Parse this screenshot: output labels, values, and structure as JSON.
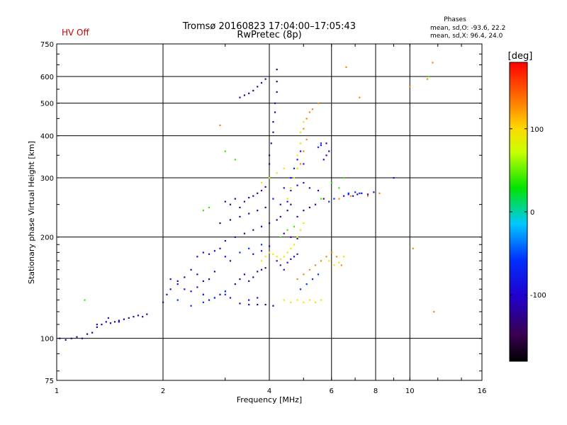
{
  "header": {
    "title": "Tromsø 20160823 17:04:00–17:05:43",
    "subtitle": "RwPretec (8p)",
    "status": "HV Off"
  },
  "stats": {
    "heading": "Phases",
    "line_o": "mean, sd,O: -93.6, 22.2",
    "line_x": "mean, sd,X:  96.4, 24.0"
  },
  "chart_data": {
    "type": "scatter",
    "xlabel": "Frequency [MHz]",
    "ylabel": "Stationary phase Virtual Height [km]",
    "x_scale": "log",
    "y_scale": "log",
    "xlim": [
      1,
      16
    ],
    "ylim": [
      75,
      750
    ],
    "x_ticks": [
      1,
      2,
      4,
      6,
      8,
      10,
      16
    ],
    "x_tick_labels": [
      "1",
      "2",
      "4",
      "6",
      "8",
      "10",
      "16"
    ],
    "y_ticks": [
      75,
      100,
      200,
      300,
      400,
      500,
      600,
      750
    ],
    "y_tick_labels": [
      "75",
      "100",
      "200",
      "300",
      "400",
      "500",
      "600",
      "750"
    ],
    "grid": true,
    "colorbar": {
      "label": "[deg]",
      "range": [
        -180,
        180
      ],
      "ticks": [
        100,
        0,
        -100
      ],
      "tick_labels": [
        "100",
        "0",
        "-100"
      ]
    },
    "series": [
      {
        "color_value": -120,
        "points": [
          [
            1.02,
            100
          ],
          [
            1.06,
            99
          ],
          [
            1.1,
            100
          ],
          [
            1.14,
            101
          ],
          [
            1.18,
            100
          ],
          [
            1.22,
            103
          ],
          [
            1.26,
            104
          ],
          [
            1.3,
            108
          ],
          [
            1.34,
            110
          ],
          [
            1.38,
            112
          ],
          [
            1.42,
            111
          ],
          [
            1.46,
            112
          ],
          [
            1.5,
            113
          ],
          [
            1.55,
            114
          ],
          [
            1.6,
            115
          ],
          [
            1.65,
            116
          ],
          [
            1.7,
            117
          ],
          [
            1.75,
            116
          ],
          [
            1.8,
            118
          ],
          [
            2.0,
            128
          ],
          [
            2.05,
            135
          ],
          [
            2.1,
            140
          ],
          [
            2.2,
            148
          ],
          [
            2.3,
            152
          ],
          [
            2.4,
            160
          ],
          [
            2.5,
            155
          ],
          [
            2.6,
            148
          ],
          [
            2.7,
            150
          ],
          [
            2.8,
            158
          ],
          [
            3.0,
            255
          ],
          [
            3.1,
            250
          ],
          [
            3.2,
            260
          ],
          [
            3.3,
            245
          ],
          [
            3.4,
            255
          ],
          [
            3.5,
            262
          ],
          [
            3.6,
            265
          ],
          [
            3.7,
            270
          ],
          [
            3.8,
            275
          ],
          [
            3.9,
            282
          ],
          [
            3.3,
            520
          ],
          [
            3.4,
            528
          ],
          [
            3.5,
            535
          ],
          [
            3.6,
            545
          ],
          [
            3.7,
            560
          ],
          [
            3.8,
            575
          ],
          [
            3.9,
            590
          ],
          [
            3.2,
            145
          ],
          [
            3.3,
            150
          ],
          [
            3.4,
            155
          ],
          [
            3.5,
            148
          ],
          [
            3.6,
            152
          ],
          [
            3.7,
            158
          ],
          [
            3.8,
            160
          ],
          [
            3.9,
            162
          ],
          [
            3.3,
            127
          ],
          [
            3.5,
            126
          ],
          [
            3.7,
            126
          ],
          [
            3.9,
            126
          ],
          [
            4.1,
            125
          ],
          [
            4.0,
            330
          ],
          [
            4.0,
            350
          ],
          [
            4.05,
            380
          ],
          [
            4.1,
            410
          ],
          [
            4.1,
            440
          ],
          [
            4.15,
            470
          ],
          [
            4.15,
            500
          ],
          [
            4.2,
            540
          ],
          [
            4.2,
            580
          ],
          [
            4.2,
            630
          ],
          [
            4.5,
            240
          ],
          [
            4.6,
            250
          ],
          [
            4.8,
            230
          ],
          [
            5.0,
            240
          ],
          [
            5.2,
            245
          ],
          [
            5.4,
            250
          ],
          [
            5.7,
            260
          ],
          [
            3.0,
            195
          ],
          [
            3.2,
            200
          ],
          [
            3.4,
            205
          ],
          [
            3.6,
            210
          ],
          [
            3.8,
            215
          ],
          [
            4.0,
            220
          ],
          [
            4.2,
            225
          ],
          [
            2.9,
            220
          ],
          [
            3.1,
            225
          ],
          [
            3.3,
            230
          ],
          [
            3.5,
            235
          ],
          [
            3.7,
            240
          ],
          [
            3.9,
            245
          ],
          [
            4.3,
            230
          ],
          [
            4.4,
            205
          ],
          [
            4.6,
            200
          ],
          [
            4.8,
            198
          ]
        ]
      },
      {
        "color_value": -90,
        "points": [
          [
            2.1,
            150
          ],
          [
            2.2,
            145
          ],
          [
            2.3,
            140
          ],
          [
            2.4,
            138
          ],
          [
            2.5,
            142
          ],
          [
            2.6,
            135
          ],
          [
            2.7,
            130
          ],
          [
            2.8,
            132
          ],
          [
            2.9,
            135
          ],
          [
            3.0,
            138
          ],
          [
            3.1,
            132
          ],
          [
            2.5,
            175
          ],
          [
            2.6,
            180
          ],
          [
            2.7,
            178
          ],
          [
            2.8,
            182
          ],
          [
            2.9,
            185
          ],
          [
            3.0,
            175
          ],
          [
            3.1,
            170
          ],
          [
            4.2,
            170
          ],
          [
            4.3,
            165
          ],
          [
            4.4,
            160
          ],
          [
            4.5,
            168
          ],
          [
            4.6,
            172
          ],
          [
            4.7,
            175
          ],
          [
            4.8,
            178
          ],
          [
            5.7,
            340
          ],
          [
            5.8,
            350
          ],
          [
            5.9,
            360
          ],
          [
            5.8,
            380
          ],
          [
            6.5,
            265
          ],
          [
            6.7,
            268
          ],
          [
            6.9,
            265
          ],
          [
            7.1,
            268
          ],
          [
            7.3,
            270
          ],
          [
            7.6,
            268
          ],
          [
            7.9,
            272
          ],
          [
            9.0,
            300
          ],
          [
            4.6,
            300
          ],
          [
            4.7,
            320
          ],
          [
            4.8,
            340
          ],
          [
            4.9,
            360
          ],
          [
            5.0,
            330
          ],
          [
            4.4,
            280
          ],
          [
            4.6,
            275
          ],
          [
            4.8,
            285
          ],
          [
            5.0,
            290
          ],
          [
            5.2,
            280
          ],
          [
            5.5,
            275
          ],
          [
            4.1,
            260
          ],
          [
            4.3,
            250
          ],
          [
            4.5,
            255
          ],
          [
            1.3,
            110
          ],
          [
            1.4,
            115
          ],
          [
            1.5,
            112
          ],
          [
            3.6,
            178
          ],
          [
            3.8,
            182
          ],
          [
            4.0,
            188
          ],
          [
            3.5,
            130
          ],
          [
            3.7,
            132
          ]
        ]
      },
      {
        "color_value": -60,
        "points": [
          [
            2.2,
            130
          ],
          [
            2.4,
            125
          ],
          [
            2.6,
            128
          ],
          [
            2.8,
            132
          ],
          [
            3.0,
            135
          ],
          [
            3.3,
            180
          ],
          [
            3.5,
            185
          ],
          [
            3.8,
            190
          ],
          [
            5.5,
            370
          ],
          [
            5.6,
            375
          ],
          [
            5.6,
            380
          ],
          [
            6.7,
            270
          ],
          [
            7.0,
            272
          ],
          [
            7.2,
            270
          ],
          [
            5.9,
            255
          ],
          [
            6.1,
            260
          ],
          [
            4.9,
            140
          ],
          [
            5.1,
            145
          ],
          [
            5.3,
            150
          ],
          [
            5.5,
            155
          ]
        ]
      },
      {
        "color_value": 90,
        "points": [
          [
            3.8,
            170
          ],
          [
            3.9,
            175
          ],
          [
            4.0,
            180
          ],
          [
            4.1,
            178
          ],
          [
            4.2,
            175
          ],
          [
            4.3,
            172
          ],
          [
            4.4,
            175
          ],
          [
            4.5,
            180
          ],
          [
            4.6,
            185
          ],
          [
            4.7,
            190
          ],
          [
            4.8,
            200
          ],
          [
            4.9,
            210
          ],
          [
            5.0,
            220
          ],
          [
            4.5,
            260
          ],
          [
            4.6,
            280
          ],
          [
            4.7,
            300
          ],
          [
            4.8,
            320
          ],
          [
            4.8,
            350
          ],
          [
            4.9,
            380
          ],
          [
            4.9,
            410
          ],
          [
            5.0,
            440
          ],
          [
            4.4,
            130
          ],
          [
            4.6,
            128
          ],
          [
            4.8,
            130
          ],
          [
            5.0,
            128
          ],
          [
            5.2,
            130
          ],
          [
            5.4,
            128
          ],
          [
            5.6,
            130
          ],
          [
            3.8,
            290
          ],
          [
            4.0,
            300
          ],
          [
            4.2,
            310
          ],
          [
            4.4,
            320
          ],
          [
            5.9,
            170
          ],
          [
            6.1,
            165
          ],
          [
            6.3,
            168
          ],
          [
            6.5,
            175
          ]
        ]
      },
      {
        "color_value": 130,
        "points": [
          [
            4.8,
            150
          ],
          [
            5.0,
            155
          ],
          [
            5.2,
            160
          ],
          [
            5.4,
            165
          ],
          [
            5.6,
            170
          ],
          [
            5.8,
            175
          ],
          [
            6.0,
            180
          ],
          [
            6.2,
            175
          ],
          [
            6.4,
            165
          ],
          [
            4.9,
            330
          ],
          [
            5.0,
            360
          ],
          [
            5.1,
            390
          ],
          [
            5.0,
            420
          ],
          [
            5.1,
            450
          ],
          [
            5.2,
            470
          ],
          [
            6.6,
            640
          ],
          [
            7.2,
            520
          ],
          [
            10.0,
            560
          ],
          [
            11.6,
            660
          ],
          [
            11.2,
            590
          ],
          [
            2.9,
            430
          ],
          [
            6.8,
            265
          ],
          [
            7.6,
            265
          ],
          [
            8.2,
            270
          ],
          [
            10.2,
            185
          ],
          [
            11.7,
            120
          ],
          [
            5.3,
            480
          ],
          [
            5.5,
            500
          ],
          [
            6.3,
            260
          ]
        ]
      },
      {
        "color_value": 40,
        "points": [
          [
            1.2,
            130
          ],
          [
            2.6,
            240
          ],
          [
            2.7,
            245
          ],
          [
            3.0,
            360
          ],
          [
            3.2,
            340
          ],
          [
            4.3,
            200
          ],
          [
            4.5,
            210
          ],
          [
            4.7,
            215
          ],
          [
            5.6,
            260
          ],
          [
            6.0,
            290
          ],
          [
            6.3,
            280
          ],
          [
            6.5,
            300
          ],
          [
            11.3,
            600
          ]
        ]
      }
    ]
  }
}
